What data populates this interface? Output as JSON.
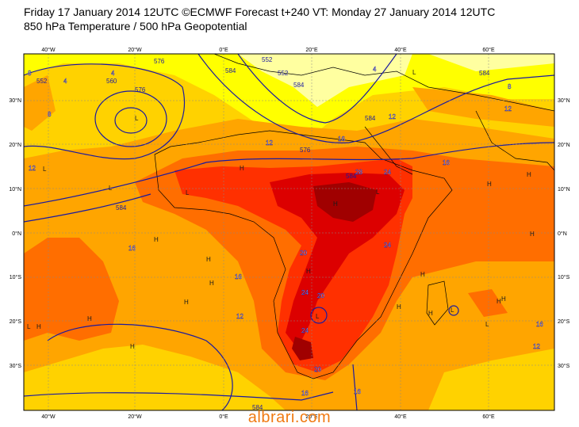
{
  "header": {
    "line1": "Friday 17 January 2014 12UTC ©ECMWF Forecast t+240 VT: Monday 27 January 2014 12UTC",
    "line2": "850 hPa Temperature / 500 hPa Geopotential"
  },
  "axes": {
    "lon_labels": [
      "40°W",
      "20°W",
      "0°E",
      "20°E",
      "40°E",
      "60°E"
    ],
    "lat_labels_left": [
      "30°N",
      "20°N",
      "10°N",
      "0°N",
      "10°S",
      "20°S",
      "30°S"
    ],
    "lat_labels_right": [
      "30°N",
      "20°N",
      "10°N",
      "0°N",
      "10°S",
      "20°S",
      "30°S"
    ]
  },
  "colors": {
    "t_lt4": "#ffffa0",
    "t_4_8": "#ffff00",
    "t_8_12": "#ffd200",
    "t_12_16": "#ffa500",
    "t_16_20": "#ff6e00",
    "t_20_24": "#ff3000",
    "t_24_28": "#dc0000",
    "t_gt28": "#a00000",
    "contour": "#1a1aa0",
    "label": "#1a1aa0"
  },
  "temperature_labels": [
    "4",
    "4",
    "4",
    "8",
    "8",
    "8",
    "12",
    "12",
    "12",
    "12",
    "12",
    "12",
    "16",
    "16",
    "16",
    "16",
    "16",
    "16",
    "16",
    "20",
    "20",
    "20",
    "24",
    "24",
    "24",
    "24",
    "28"
  ],
  "geopotential_labels": [
    "576",
    "576",
    "576",
    "552",
    "560",
    "584",
    "584",
    "584",
    "584",
    "552",
    "552",
    "584",
    "584",
    "584"
  ],
  "pressure_centers": [
    "L",
    "L",
    "L",
    "L",
    "L",
    "L",
    "L",
    "L",
    "L",
    "L",
    "H",
    "H",
    "H",
    "H",
    "H",
    "H",
    "H",
    "H",
    "H",
    "H",
    "H",
    "H",
    "H",
    "H",
    "H",
    "H",
    "H",
    "H"
  ],
  "watermark": "albrari.com"
}
